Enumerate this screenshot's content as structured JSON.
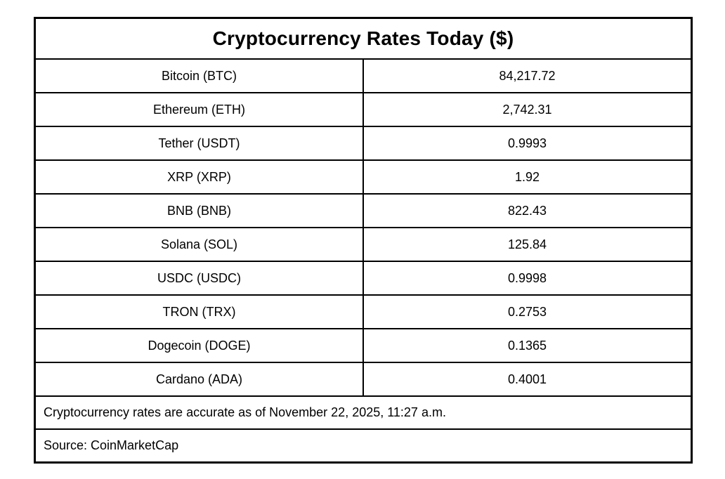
{
  "table": {
    "title": "Cryptocurrency Rates Today ($)",
    "rows": [
      {
        "name": "Bitcoin (BTC)",
        "value": "84,217.72"
      },
      {
        "name": "Ethereum (ETH)",
        "value": "2,742.31"
      },
      {
        "name": "Tether (USDT)",
        "value": "0.9993"
      },
      {
        "name": "XRP (XRP)",
        "value": "1.92"
      },
      {
        "name": "BNB (BNB)",
        "value": "822.43"
      },
      {
        "name": "Solana (SOL)",
        "value": "125.84"
      },
      {
        "name": "USDC (USDC)",
        "value": "0.9998"
      },
      {
        "name": "TRON (TRX)",
        "value": "0.2753"
      },
      {
        "name": "Dogecoin (DOGE)",
        "value": "0.1365"
      },
      {
        "name": "Cardano (ADA)",
        "value": "0.4001"
      }
    ],
    "footnote": "Cryptocurrency rates are accurate as of November 22, 2025, 11:27 a.m.",
    "source": "Source: CoinMarketCap"
  },
  "chart_data": {
    "type": "table",
    "title": "Cryptocurrency Rates Today ($)",
    "categories": [
      "Bitcoin (BTC)",
      "Ethereum (ETH)",
      "Tether (USDT)",
      "XRP (XRP)",
      "BNB (BNB)",
      "Solana (SOL)",
      "USDC (USDC)",
      "TRON (TRX)",
      "Dogecoin (DOGE)",
      "Cardano (ADA)"
    ],
    "values": [
      84217.72,
      2742.31,
      0.9993,
      1.92,
      822.43,
      125.84,
      0.9998,
      0.2753,
      0.1365,
      0.4001
    ]
  },
  "colors": {
    "border": "#000000",
    "text": "#000000",
    "background": "#ffffff"
  }
}
